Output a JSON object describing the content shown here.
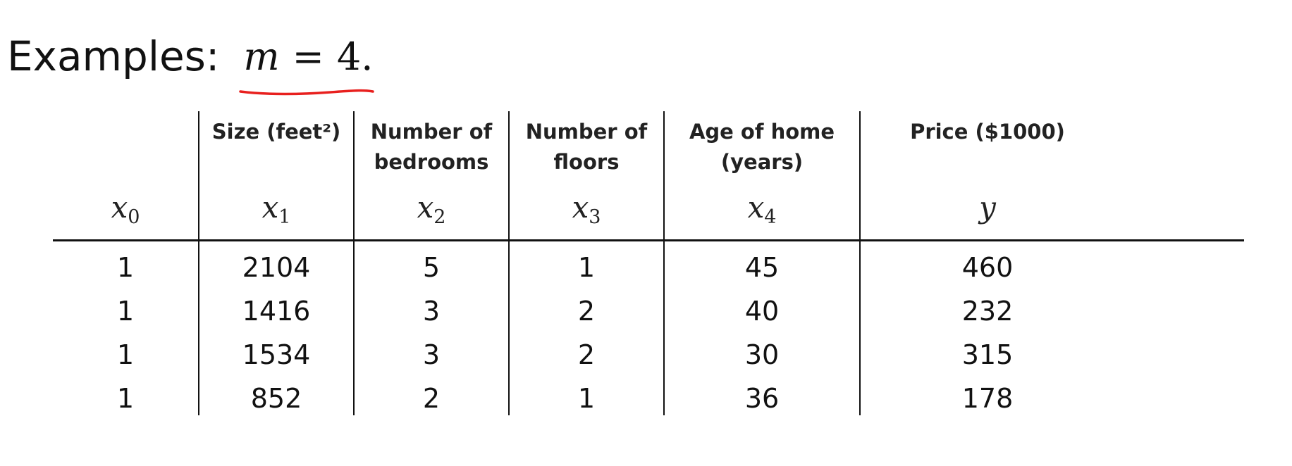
{
  "title": {
    "label": "Examples:",
    "math": {
      "variable": "m",
      "operator": "=",
      "value": "4."
    },
    "underline_color": "#e8201e"
  },
  "table": {
    "columns": [
      {
        "header_line1": "",
        "header_line2": "",
        "var": "x",
        "sub": "0"
      },
      {
        "header_line1": "Size (feet²)",
        "header_line2": "",
        "var": "x",
        "sub": "1"
      },
      {
        "header_line1": "Number of",
        "header_line2": "bedrooms",
        "var": "x",
        "sub": "2"
      },
      {
        "header_line1": "Number of",
        "header_line2": "floors",
        "var": "x",
        "sub": "3"
      },
      {
        "header_line1": "Age of home",
        "header_line2": "(years)",
        "var": "x",
        "sub": "4"
      },
      {
        "header_line1": "Price ($1000)",
        "header_line2": "",
        "var": "y",
        "sub": ""
      }
    ],
    "rows": [
      [
        "1",
        "2104",
        "5",
        "1",
        "45",
        "460"
      ],
      [
        "1",
        "1416",
        "3",
        "2",
        "40",
        "232"
      ],
      [
        "1",
        "1534",
        "3",
        "2",
        "30",
        "315"
      ],
      [
        "1",
        "852",
        "2",
        "1",
        "36",
        "178"
      ]
    ]
  }
}
